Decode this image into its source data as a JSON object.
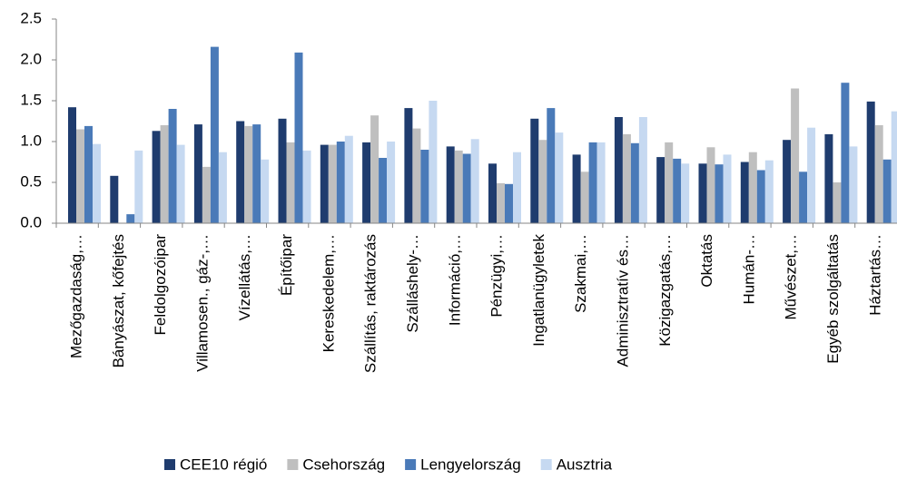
{
  "chart_data": {
    "type": "bar",
    "categories": [
      "Mezőgazdaság,…",
      "Bányászat, kőfejtés",
      "Feldolgozóipar",
      "Villamosen., gáz-,…",
      "Vízellátás,…",
      "Építőipar",
      "Kereskedelem,…",
      "Szállítás, raktározás",
      "Szálláshely-…",
      "Információ,…",
      "Pénzügyi,…",
      "Ingatlanügyletek",
      "Szakmai,…",
      "Adminisztratív és…",
      "Közigazgatás,…",
      "Oktatás",
      "Humán-…",
      "Művészet,…",
      "Egyéb szolgáltatás",
      "Háztartás…"
    ],
    "series": [
      {
        "name": "CEE10 régió",
        "color": "#1f3c6e",
        "values": [
          1.42,
          0.58,
          1.13,
          1.21,
          1.25,
          1.28,
          0.96,
          0.99,
          1.41,
          0.94,
          0.73,
          1.28,
          0.84,
          1.3,
          0.81,
          0.73,
          0.75,
          1.02,
          1.09,
          1.49
        ]
      },
      {
        "name": "Csehország",
        "color": "#bfbfbf",
        "values": [
          1.15,
          null,
          1.2,
          0.69,
          1.19,
          0.99,
          0.96,
          1.32,
          1.16,
          0.89,
          0.49,
          1.02,
          0.63,
          1.09,
          0.99,
          0.93,
          0.87,
          1.65,
          0.5,
          1.2
        ]
      },
      {
        "name": "Lengyelország",
        "color": "#4a7ab8",
        "values": [
          1.19,
          0.11,
          1.4,
          2.16,
          1.21,
          2.09,
          1.0,
          0.8,
          0.9,
          0.85,
          0.48,
          1.41,
          0.99,
          0.98,
          0.79,
          0.72,
          0.65,
          0.63,
          1.72,
          0.78
        ]
      },
      {
        "name": "Ausztria",
        "color": "#c6d9f1",
        "values": [
          0.97,
          0.89,
          0.96,
          0.87,
          0.78,
          0.89,
          1.07,
          1.0,
          1.5,
          1.03,
          0.87,
          1.11,
          0.99,
          1.3,
          0.73,
          0.84,
          0.77,
          1.17,
          0.94,
          1.37
        ]
      }
    ],
    "ylim": [
      0,
      2.5
    ],
    "yticks": [
      {
        "value": 0,
        "label": "0.0"
      },
      0.5,
      {
        "value": 1,
        "label": "1.0"
      },
      1.5,
      {
        "value": 2,
        "label": "2.0"
      },
      2.5
    ],
    "grid": false,
    "legend": "bottom"
  }
}
